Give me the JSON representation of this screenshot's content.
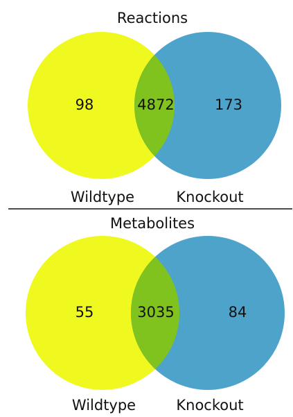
{
  "chart_data": [
    {
      "type": "venn",
      "title": "Reactions",
      "sets": [
        "Wildtype",
        "Knockout"
      ],
      "values": [
        98,
        4872,
        173
      ],
      "colors": [
        "#eff91f",
        "#4ea3cb",
        "#80c31f"
      ]
    },
    {
      "type": "venn",
      "title": "Metabolites",
      "sets": [
        "Wildtype",
        "Knockout"
      ],
      "values": [
        55,
        3035,
        84
      ],
      "colors": [
        "#eff91f",
        "#4ea3cb",
        "#80c31f"
      ]
    }
  ]
}
